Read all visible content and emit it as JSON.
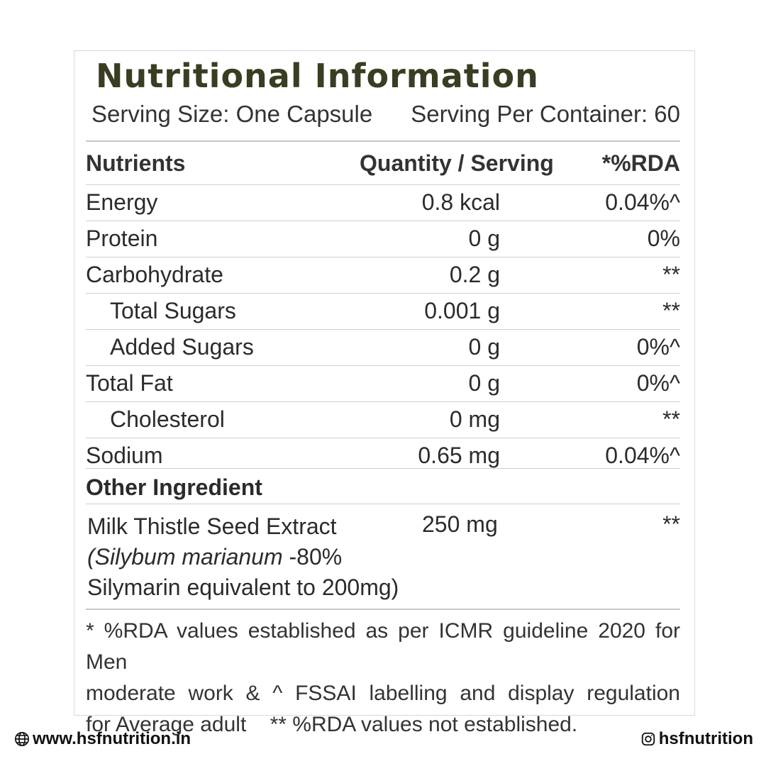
{
  "label": {
    "title": "Nutritional Information",
    "serving_size": "Serving Size: One Capsule",
    "servings_per_container": "Serving Per Container: 60",
    "headers": {
      "nutrients": "Nutrients",
      "quantity": "Quantity / Serving",
      "rda": "*%RDA"
    },
    "rows": [
      {
        "name": "Energy",
        "qty": "0.8 kcal",
        "rda": "0.04%^"
      },
      {
        "name": "Protein",
        "qty": "0 g",
        "rda": "0%"
      },
      {
        "name": "Carbohydrate",
        "qty": "0.2 g",
        "rda": "**"
      },
      {
        "name": "Total Sugars",
        "qty": "0.001 g",
        "rda": "**"
      },
      {
        "name": "Added Sugars",
        "qty": "0 g",
        "rda": "0%^"
      },
      {
        "name": "Total Fat",
        "qty": "0 g",
        "rda": "0%^"
      },
      {
        "name": "Cholesterol",
        "qty": "0 mg",
        "rda": "**"
      },
      {
        "name": "Sodium",
        "qty": "0.65 mg",
        "rda": "0.04%^"
      }
    ],
    "other_heading": "Other Ingredient",
    "ingredient": {
      "line1": "Milk Thistle Seed Extract",
      "line2_italic": "(Silybum marianum",
      "line2_rest": " -80%",
      "line3": "Silymarin equivalent to 200mg)",
      "qty": "250 mg",
      "rda": "**"
    },
    "footnote": {
      "line1": "* %RDA values established as per ICMR guideline 2020 for Men",
      "line2": "moderate work & ^ FSSAI labelling and display regulation",
      "line3": "for Average adult    ** %RDA values not established."
    }
  },
  "footer": {
    "website": "www.hsfnutrition.in",
    "website_icon": "globe-icon",
    "handle": "hsfnutrition",
    "handle_icon": "instagram-icon"
  }
}
